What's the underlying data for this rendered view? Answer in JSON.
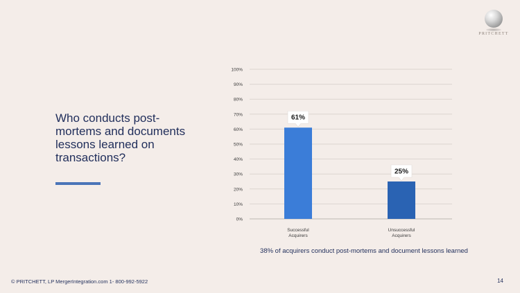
{
  "logo": {
    "text": "PRITCHETT"
  },
  "question": "Who conducts post-mortems and documents lessons learned on transactions?",
  "caption": "38% of acquirers conduct post-mortems and document lessons learned",
  "footer": "© PRITCHETT, LP MergerIntegration.com 1- 800-992-5922",
  "page_number": "14",
  "colors": {
    "bar_primary": "#3b7dd8",
    "bar_secondary": "#2a63b3",
    "title_text": "#1f2d5a",
    "accent_bar": "#4a74b8"
  },
  "chart_data": {
    "type": "bar",
    "categories": [
      "Successful Acquirers",
      "Unsuccessful Acquirers"
    ],
    "category_labels": [
      [
        "Successful",
        "Acquirers"
      ],
      [
        "Unsuccessful",
        "Acquirers"
      ]
    ],
    "values": [
      61,
      25
    ],
    "data_labels": [
      "61%",
      "25%"
    ],
    "ylim": [
      0,
      100
    ],
    "yticks": [
      0,
      10,
      20,
      30,
      40,
      50,
      60,
      70,
      80,
      90,
      100
    ],
    "ytick_labels": [
      "0%",
      "10%",
      "20%",
      "30%",
      "40%",
      "50%",
      "60%",
      "70%",
      "80%",
      "90%",
      "100%"
    ],
    "grid": true,
    "legend": "none"
  }
}
